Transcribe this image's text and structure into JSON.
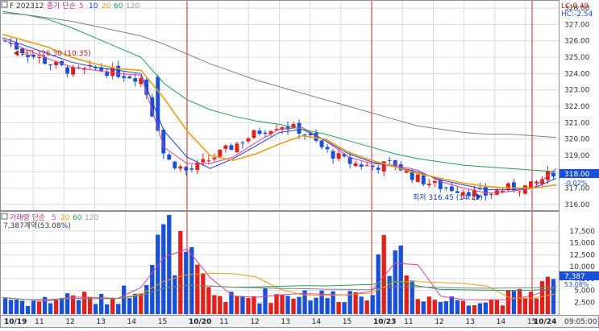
{
  "header": {
    "symbol": "F 202312",
    "ma_label": "종가 단순",
    "periods": [
      "5",
      "10",
      "20",
      "60",
      "120"
    ],
    "lc": "LC:0.49",
    "hc": "HC:-2.54"
  },
  "annotations": {
    "high": "최고 326.30 (10:35)",
    "low": "최저 316.45 (14:15)"
  },
  "price_axis": {
    "ticks": [
      "328.00",
      "327.00",
      "326.00",
      "325.00",
      "324.00",
      "323.00",
      "322.00",
      "321.00",
      "320.00",
      "319.00",
      "318.00",
      "317.00",
      "316.00"
    ],
    "current_price": "318.00",
    "current_change": "-0.02%"
  },
  "volume_panel": {
    "title": "거래량 단순",
    "periods": [
      "5",
      "20",
      "60",
      "120"
    ],
    "summary": "7,387계약(53.08%)",
    "ticks": [
      "17,500",
      "15,000",
      "12,500",
      "10,000",
      "7,500",
      "5,000",
      "2,500"
    ],
    "current_volume": "7,387",
    "current_pct": "53.08%"
  },
  "time_axis": {
    "labels": [
      "10/19",
      "11",
      "12",
      "13",
      "14",
      "15",
      "10/20",
      "11",
      "12",
      "13",
      "14",
      "15",
      "10/23",
      "11",
      "12",
      "13",
      "14",
      "15",
      "10/24"
    ],
    "clock": "09:05:00"
  },
  "colors": {
    "up": "#e0201b",
    "down": "#1a4fd8",
    "ma5": "#e0409a",
    "ma10": "#1f3fd8",
    "ma20": "#e8a010",
    "ma60": "#20a050",
    "ma120": "#808080",
    "session": "#d02020",
    "grid": "#d8dce4"
  },
  "chart_data": {
    "type": "candlestick",
    "title": "F 202312",
    "sessions": [
      "10/19",
      "10/20",
      "10/23",
      "10/24"
    ],
    "price_range": [
      315.8,
      328.3
    ],
    "volume_range": [
      0,
      19000
    ],
    "series": [
      {
        "name": "5",
        "values": [
          326.1,
          325.5,
          324.9,
          324.4,
          324.2,
          324.0,
          323.9,
          319.5,
          318.5,
          318.5,
          318.9,
          319.8,
          320.6,
          320.7,
          319.9,
          318.9,
          318.5,
          318.4,
          318.1,
          317.4,
          317.0,
          316.7,
          316.8,
          317.0,
          318.2
        ]
      },
      {
        "name": "10",
        "values": [
          326.2,
          325.7,
          325.2,
          324.7,
          324.4,
          324.2,
          324.0,
          320.5,
          318.9,
          318.2,
          318.8,
          319.6,
          320.4,
          320.6,
          319.9,
          319.1,
          318.6,
          318.3,
          318.0,
          317.5,
          317.2,
          316.9,
          316.9,
          317.0,
          317.6
        ]
      },
      {
        "name": "20",
        "values": [
          326.4,
          326.0,
          325.6,
          325.0,
          324.6,
          324.3,
          324.2,
          322.5,
          320.5,
          319.0,
          318.7,
          319.1,
          319.7,
          320.2,
          320.0,
          319.2,
          318.7,
          318.3,
          317.9,
          317.6,
          317.3,
          317.1,
          317.0,
          317.0,
          317.2
        ]
      },
      {
        "name": "60",
        "values": [
          327.8,
          327.6,
          327.3,
          326.8,
          326.2,
          325.6,
          325.0,
          323.4,
          322.4,
          321.8,
          321.4,
          321.1,
          320.9,
          320.6,
          320.3,
          319.9,
          319.5,
          319.1,
          318.8,
          318.6,
          318.4,
          318.3,
          318.2,
          318.1,
          318.0
        ]
      },
      {
        "name": "120",
        "values": [
          327.7,
          327.6,
          327.4,
          327.2,
          326.9,
          326.6,
          326.3,
          325.8,
          325.2,
          324.6,
          324.1,
          323.6,
          323.2,
          322.8,
          322.4,
          322.0,
          321.6,
          321.2,
          320.8,
          320.6,
          320.4,
          320.3,
          320.3,
          320.2,
          320.1
        ]
      }
    ],
    "close_trend": [
      326.0,
      325.2,
      324.6,
      324.1,
      324.3,
      324.0,
      323.7,
      318.8,
      318.0,
      318.8,
      319.6,
      320.4,
      320.9,
      320.5,
      319.3,
      318.6,
      318.3,
      318.5,
      317.6,
      317.1,
      316.9,
      316.6,
      317.0,
      317.1,
      318.0
    ],
    "volume_trend": [
      3500,
      2600,
      3000,
      4200,
      2800,
      3800,
      7400,
      16500,
      11000,
      4400,
      3200,
      3900,
      4100,
      4600,
      3700,
      4300,
      5400,
      16000,
      4800,
      2700,
      3400,
      2600,
      3500,
      4400,
      7387
    ],
    "high": 326.3,
    "low": 316.45,
    "last": 318.0,
    "last_volume": 7387
  }
}
